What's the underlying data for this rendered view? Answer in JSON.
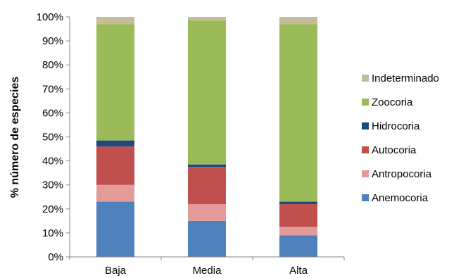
{
  "chart_data": {
    "type": "bar",
    "stacked": true,
    "ylabel": "% número de especies",
    "xlabel": "",
    "ylim": [
      0,
      100
    ],
    "ytick_step": 10,
    "ytick_suffix": "%",
    "grid": false,
    "legend_position": "right",
    "categories": [
      "Baja",
      "Media",
      "Alta"
    ],
    "series": [
      {
        "name": "Anemocoria",
        "color": "#4f81bd",
        "values": [
          23,
          15,
          9
        ]
      },
      {
        "name": "Antropocoria",
        "color": "#e39b9a",
        "values": [
          7,
          7,
          3.5
        ]
      },
      {
        "name": "Autocoria",
        "color": "#c0504d",
        "values": [
          16,
          15.5,
          9.5
        ]
      },
      {
        "name": "Hidrocoria",
        "color": "#1f497d",
        "values": [
          2.5,
          1,
          1
        ]
      },
      {
        "name": "Zoocoria",
        "color": "#9bbb59",
        "values": [
          48.5,
          60,
          74
        ]
      },
      {
        "name": "Indeterminado",
        "color": "#c4bd97",
        "values": [
          3,
          1.5,
          3
        ]
      }
    ]
  }
}
